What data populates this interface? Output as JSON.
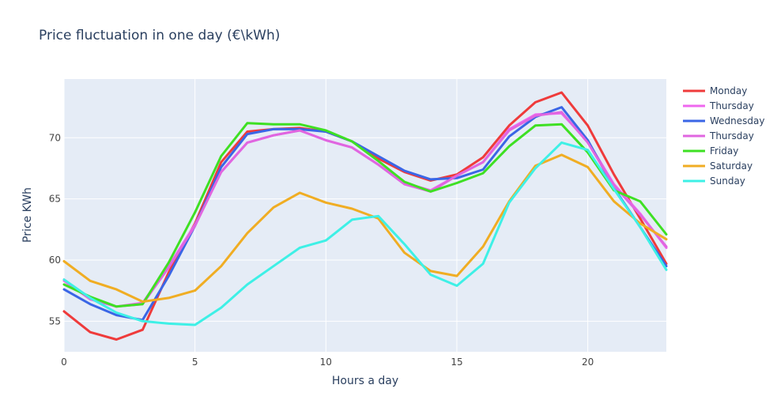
{
  "chart_data": {
    "type": "line",
    "title": "Price fluctuation in one day (€\\kWh)",
    "xlabel": "Hours a day",
    "ylabel": "Price KWh",
    "xlim": [
      0,
      23
    ],
    "ylim": [
      52.5,
      74.8
    ],
    "x_ticks": [
      0,
      5,
      10,
      15,
      20
    ],
    "y_ticks": [
      55,
      60,
      65,
      70
    ],
    "grid": true,
    "legend_position": "right",
    "plot_background": "#e5ecf6",
    "x": [
      0,
      1,
      2,
      3,
      4,
      5,
      6,
      7,
      8,
      9,
      10,
      11,
      12,
      13,
      14,
      15,
      16,
      17,
      18,
      19,
      20,
      21,
      22,
      23
    ],
    "series": [
      {
        "name": "Monday",
        "color": "#ef3b3b",
        "values": [
          55.8,
          54.1,
          53.5,
          54.3,
          59.0,
          63.0,
          68.0,
          70.5,
          70.7,
          70.8,
          70.5,
          69.7,
          68.3,
          67.2,
          66.5,
          67.0,
          68.4,
          71.0,
          72.9,
          73.7,
          71.0,
          67.0,
          63.4,
          59.7
        ]
      },
      {
        "name": "Thursday",
        "color": "#ef67ef",
        "values": [
          58.3,
          56.8,
          56.2,
          56.5,
          59.5,
          62.9,
          67.2,
          69.6,
          70.2,
          70.6,
          69.8,
          69.2,
          67.8,
          66.3,
          65.7,
          66.9,
          68.0,
          70.7,
          71.9,
          72.0,
          69.7,
          66.2,
          63.8,
          61.0
        ]
      },
      {
        "name": "Wednesday",
        "color": "#3a66e6",
        "values": [
          57.6,
          56.4,
          55.5,
          55.1,
          58.7,
          62.8,
          67.6,
          70.3,
          70.7,
          70.7,
          70.5,
          69.7,
          68.5,
          67.3,
          66.6,
          66.7,
          67.4,
          70.1,
          71.7,
          72.5,
          69.8,
          65.9,
          62.7,
          59.5
        ]
      },
      {
        "name": "Thursday",
        "color": "#e066e0",
        "values": [
          58.4,
          56.8,
          56.2,
          56.4,
          59.4,
          62.8,
          67.2,
          69.6,
          70.2,
          70.6,
          69.8,
          69.2,
          67.8,
          66.2,
          65.6,
          66.9,
          68.0,
          70.6,
          71.8,
          72.1,
          69.6,
          66.1,
          63.7,
          61.1
        ]
      },
      {
        "name": "Friday",
        "color": "#3ee023",
        "values": [
          58.0,
          57.0,
          56.2,
          56.4,
          59.8,
          63.9,
          68.5,
          71.2,
          71.1,
          71.1,
          70.6,
          69.7,
          68.1,
          66.4,
          65.6,
          66.3,
          67.1,
          69.3,
          71.0,
          71.1,
          68.8,
          65.7,
          64.8,
          62.1
        ]
      },
      {
        "name": "Saturday",
        "color": "#f0ad23",
        "values": [
          59.9,
          58.3,
          57.6,
          56.6,
          56.9,
          57.5,
          59.5,
          62.2,
          64.3,
          65.5,
          64.7,
          64.2,
          63.4,
          60.6,
          59.1,
          58.7,
          61.1,
          64.8,
          67.7,
          68.6,
          67.6,
          64.8,
          63.0,
          61.7
        ]
      },
      {
        "name": "Sunday",
        "color": "#3ef0e6",
        "values": [
          58.4,
          56.9,
          55.7,
          55.0,
          54.8,
          54.7,
          56.1,
          58.0,
          59.5,
          61.0,
          61.6,
          63.3,
          63.6,
          61.3,
          58.8,
          57.9,
          59.7,
          64.7,
          67.5,
          69.6,
          69.0,
          65.8,
          62.7,
          59.2
        ]
      }
    ]
  }
}
